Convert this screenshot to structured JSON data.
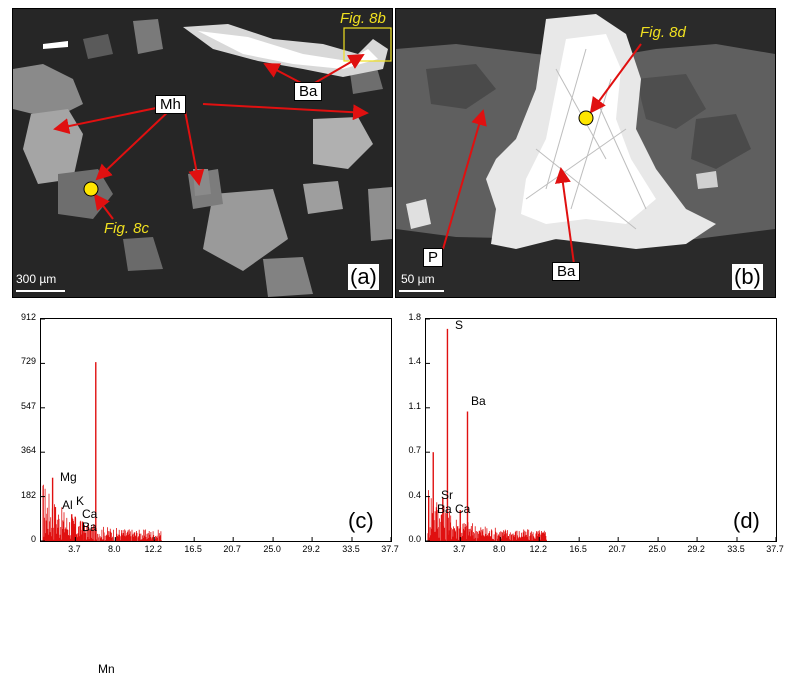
{
  "panel_a": {
    "labels": {
      "mh": "Mh",
      "ba": "Ba"
    },
    "captions": {
      "fig8b": "Fig. 8b",
      "fig8c": "Fig. 8c"
    },
    "scale": "300 µm",
    "letter": "(a)"
  },
  "panel_b": {
    "labels": {
      "p": "P",
      "ba": "Ba"
    },
    "captions": {
      "fig8d": "Fig. 8d"
    },
    "scale": "50 µm",
    "letter": "(b)"
  },
  "colors": {
    "arrow": "#e01010",
    "marker": "#ffe600",
    "caption": "#f0e020",
    "spectrum": "#e01010"
  },
  "chart_data": [
    {
      "type": "bar",
      "panel": "(c)",
      "yticks": [
        "912",
        "729",
        "547",
        "364",
        "182",
        "0"
      ],
      "xticks": [
        "3.7",
        "8.0",
        "12.2",
        "16.5",
        "20.7",
        "25.0",
        "29.2",
        "33.5",
        "37.7"
      ],
      "ylim": [
        0,
        912
      ],
      "xlim": [
        0,
        37.7
      ],
      "peaks": [
        {
          "element": "Mn",
          "energy": 5.9,
          "count": 735
        },
        {
          "element": "Mg",
          "energy": 1.25,
          "count": 260
        },
        {
          "element": "Al",
          "energy": 1.49,
          "count": 140
        },
        {
          "element": "K",
          "energy": 3.31,
          "count": 110
        },
        {
          "element": "Ca",
          "energy": 3.69,
          "count": 100
        },
        {
          "element": "Ba",
          "energy": 4.47,
          "count": 80
        }
      ],
      "element_labels": [
        "Mn",
        "Mg",
        "Al",
        "K",
        "Ca",
        "Ba"
      ]
    },
    {
      "type": "bar",
      "panel": "(d)",
      "yticks": [
        "1.8",
        "1.4",
        "1.1",
        "0.7",
        "0.4",
        "0.0"
      ],
      "xticks": [
        "3.7",
        "8.0",
        "12.2",
        "16.5",
        "20.7",
        "25.0",
        "29.2",
        "33.5",
        "37.7"
      ],
      "ylim": [
        0,
        1.8
      ],
      "xlim": [
        0,
        37.7
      ],
      "peaks": [
        {
          "element": "S",
          "energy": 2.31,
          "count": 1.72
        },
        {
          "element": "Ba",
          "energy": 4.47,
          "count": 1.05
        },
        {
          "element": "Sr",
          "energy": 1.81,
          "count": 0.35
        },
        {
          "element": "Ba",
          "energy": 0.78,
          "count": 0.72
        },
        {
          "element": "Ca",
          "energy": 3.69,
          "count": 0.25
        }
      ],
      "element_labels": [
        "S",
        "Ba",
        "Sr",
        "Ba",
        "Ca"
      ]
    }
  ]
}
